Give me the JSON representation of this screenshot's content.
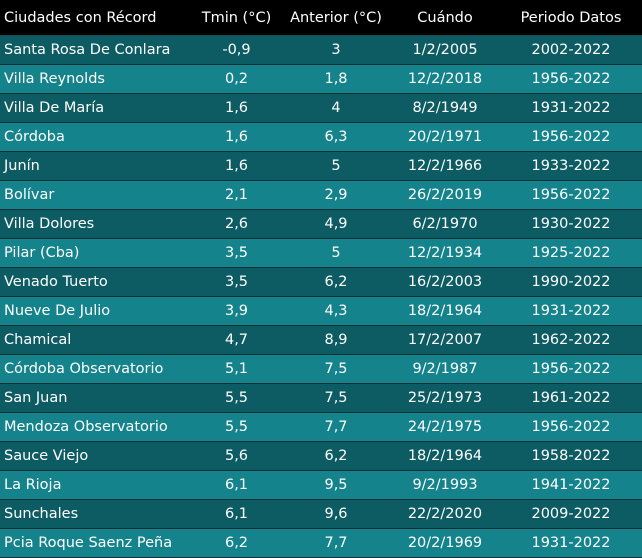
{
  "table": {
    "headers": [
      "Ciudades con Récord",
      "Tmin (°C)",
      "Anterior (°C)",
      "Cuándo",
      "Periodo Datos"
    ],
    "rows": [
      [
        "Santa Rosa De Conlara",
        "-0,9",
        "3",
        "1/2/2005",
        "2002-2022"
      ],
      [
        "Villa Reynolds",
        "0,2",
        "1,8",
        "12/2/2018",
        "1956-2022"
      ],
      [
        "Villa De María",
        "1,6",
        "4",
        "8/2/1949",
        "1931-2022"
      ],
      [
        "Córdoba",
        "1,6",
        "6,3",
        "20/2/1971",
        "1956-2022"
      ],
      [
        "Junín",
        "1,6",
        "5",
        "12/2/1966",
        "1933-2022"
      ],
      [
        "Bolívar",
        "2,1",
        "2,9",
        "26/2/2019",
        "1956-2022"
      ],
      [
        "Villa Dolores",
        "2,6",
        "4,9",
        "6/2/1970",
        "1930-2022"
      ],
      [
        "Pilar (Cba)",
        "3,5",
        "5",
        "12/2/1934",
        "1925-2022"
      ],
      [
        "Venado Tuerto",
        "3,5",
        "6,2",
        "16/2/2003",
        "1990-2022"
      ],
      [
        "Nueve De Julio",
        "3,9",
        "4,3",
        "18/2/1964",
        "1931-2022"
      ],
      [
        "Chamical",
        "4,7",
        "8,9",
        "17/2/2007",
        "1962-2022"
      ],
      [
        "Córdoba Observatorio",
        "5,1",
        "7,5",
        "9/2/1987",
        "1956-2022"
      ],
      [
        "San Juan",
        "5,5",
        "7,5",
        "25/2/1973",
        "1961-2022"
      ],
      [
        "Mendoza Observatorio",
        "5,5",
        "7,7",
        "24/2/1975",
        "1956-2022"
      ],
      [
        "Sauce Viejo",
        "5,6",
        "6,2",
        "18/2/1964",
        "1958-2022"
      ],
      [
        "La Rioja",
        "6,1",
        "9,5",
        "9/2/1993",
        "1941-2022"
      ],
      [
        "Sunchales",
        "6,1",
        "9,6",
        "22/2/2020",
        "2009-2022"
      ],
      [
        "Pcia Roque Saenz Peña",
        "6,2",
        "7,7",
        "20/2/1969",
        "1931-2022"
      ]
    ]
  },
  "colors": {
    "header_bg": "#000000",
    "row_dark": "#0d5c63",
    "row_light": "#14838c",
    "text": "#ffffff"
  }
}
